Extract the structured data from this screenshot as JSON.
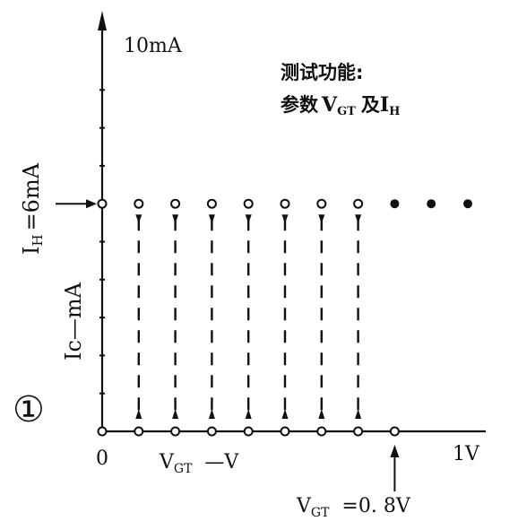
{
  "title_line1": "测试功能:",
  "title_line2_prefix": "参数",
  "title_line2_vgt_main": "V",
  "title_line2_vgt_sub": "GT",
  "title_line2_mid": "及",
  "title_line2_ih_main": "I",
  "title_line2_ih_sub": "H",
  "y_max_label": "10mA",
  "ih_label_main": "I",
  "ih_label_sub": "H",
  "ih_label_rest": "=6mA",
  "y_axis_label": "Ic—mA",
  "circled_number": "①",
  "x_origin_label": "0",
  "x_max_label": "1V",
  "x_axis_label_main": "V",
  "x_axis_label_sub": "GT",
  "x_axis_label_rest": "—V",
  "vgt_value_main": "V",
  "vgt_value_sub": "GT",
  "vgt_value_rest": "=0. 8V",
  "colors": {
    "ink": "#111111",
    "background": "#ffffff"
  },
  "chart_data": {
    "type": "scatter",
    "x_range_v": [
      0,
      1
    ],
    "y_range_ma": [
      0,
      10
    ],
    "ih_ma": 6,
    "vgt_v": 0.8,
    "conducting_points_x_v": [
      0,
      0.1,
      0.2,
      0.3,
      0.4,
      0.5,
      0.6,
      0.7
    ],
    "conducting_level_ma": 6,
    "off_points_x_v": [
      0.8,
      0.9,
      1.0
    ],
    "off_level_ma": 6,
    "baseline_points_x_v": [
      0,
      0.1,
      0.2,
      0.3,
      0.4,
      0.5,
      0.6,
      0.7,
      0.8
    ],
    "baseline_level_ma": 0
  }
}
